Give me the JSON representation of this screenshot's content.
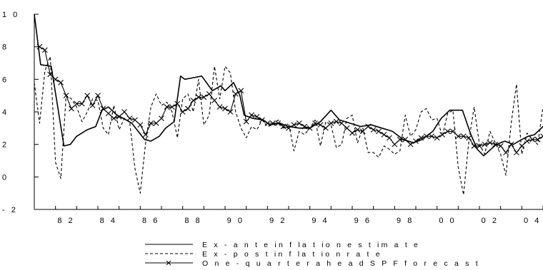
{
  "chart_data": {
    "type": "line",
    "title": "",
    "xlabel": "",
    "ylabel": "",
    "x_start": 1981.0,
    "x_end": 2005.0,
    "ylim": [
      -2,
      10
    ],
    "y_ticks": [
      "- 2",
      "0",
      "2",
      "4",
      "6",
      "8",
      "1 0"
    ],
    "x_ticks": [
      {
        "x": 1982,
        "label": "8 2"
      },
      {
        "x": 1984,
        "label": "8 4"
      },
      {
        "x": 1986,
        "label": "8 6"
      },
      {
        "x": 1988,
        "label": "8 8"
      },
      {
        "x": 1990,
        "label": "9 0"
      },
      {
        "x": 1992,
        "label": "9 2"
      },
      {
        "x": 1994,
        "label": "9 4"
      },
      {
        "x": 1996,
        "label": "9 6"
      },
      {
        "x": 1998,
        "label": "9 8"
      },
      {
        "x": 2000,
        "label": "0 0"
      },
      {
        "x": 2002,
        "label": "0 2"
      },
      {
        "x": 2004,
        "label": "0 4"
      }
    ],
    "series": [
      {
        "name": "E x - a n t e  in f la t io n  e s t im  a t e",
        "style": "solid",
        "points": [
          [
            1981.0,
            10.0
          ],
          [
            1981.3,
            6.9
          ],
          [
            1981.8,
            6.8
          ],
          [
            1982.4,
            1.9
          ],
          [
            1982.7,
            2.0
          ],
          [
            1983.0,
            2.5
          ],
          [
            1983.5,
            2.9
          ],
          [
            1983.9,
            3.1
          ],
          [
            1984.2,
            4.1
          ],
          [
            1984.5,
            4.3
          ],
          [
            1984.9,
            3.8
          ],
          [
            1985.2,
            3.6
          ],
          [
            1985.6,
            3.3
          ],
          [
            1986.2,
            2.3
          ],
          [
            1986.5,
            2.2
          ],
          [
            1986.9,
            2.5
          ],
          [
            1987.2,
            3.0
          ],
          [
            1987.6,
            3.4
          ],
          [
            1987.9,
            6.2
          ],
          [
            1988.1,
            6.0
          ],
          [
            1988.5,
            6.1
          ],
          [
            1988.9,
            6.2
          ],
          [
            1989.4,
            5.3
          ],
          [
            1989.8,
            5.6
          ],
          [
            1990.0,
            5.3
          ],
          [
            1990.4,
            5.8
          ],
          [
            1990.7,
            5.0
          ],
          [
            1990.9,
            3.8
          ],
          [
            1991.3,
            3.6
          ],
          [
            1991.8,
            3.5
          ],
          [
            1992.1,
            3.2
          ],
          [
            1992.6,
            3.3
          ],
          [
            1993.0,
            3.1
          ],
          [
            1993.5,
            3.0
          ],
          [
            1994.0,
            3.0
          ],
          [
            1994.5,
            3.4
          ],
          [
            1995.0,
            4.1
          ],
          [
            1995.4,
            3.5
          ],
          [
            1995.9,
            3.3
          ],
          [
            1996.4,
            3.1
          ],
          [
            1996.9,
            3.2
          ],
          [
            1997.4,
            3.0
          ],
          [
            1997.9,
            2.8
          ],
          [
            1998.4,
            2.3
          ],
          [
            1998.9,
            2.1
          ],
          [
            1999.3,
            2.3
          ],
          [
            1999.8,
            2.8
          ],
          [
            2000.2,
            3.6
          ],
          [
            2000.6,
            4.1
          ],
          [
            2001.2,
            4.1
          ],
          [
            2001.6,
            2.6
          ],
          [
            2001.9,
            1.7
          ],
          [
            2002.2,
            1.3
          ],
          [
            2002.8,
            2.0
          ],
          [
            2003.2,
            2.2
          ],
          [
            2003.6,
            2.0
          ],
          [
            2004.0,
            2.3
          ],
          [
            2004.3,
            2.5
          ],
          [
            2004.6,
            2.6
          ],
          [
            2005.0,
            3.1
          ]
        ]
      },
      {
        "name": "E x - p o s t in f la t io n  r a t e",
        "style": "dashed",
        "points": [
          [
            1981.0,
            5.8
          ],
          [
            1981.25,
            3.3
          ],
          [
            1981.5,
            6.5
          ],
          [
            1981.75,
            7.4
          ],
          [
            1982.0,
            0.9
          ],
          [
            1982.25,
            -0.1
          ],
          [
            1982.5,
            5.0
          ],
          [
            1982.75,
            4.8
          ],
          [
            1983.0,
            4.3
          ],
          [
            1983.25,
            3.4
          ],
          [
            1983.5,
            4.0
          ],
          [
            1983.75,
            4.8
          ],
          [
            1984.0,
            4.7
          ],
          [
            1984.25,
            3.0
          ],
          [
            1984.5,
            2.6
          ],
          [
            1984.75,
            4.4
          ],
          [
            1985.0,
            2.9
          ],
          [
            1985.25,
            3.6
          ],
          [
            1985.5,
            3.4
          ],
          [
            1985.75,
            0.5
          ],
          [
            1986.0,
            -1.0
          ],
          [
            1986.25,
            2.1
          ],
          [
            1986.5,
            4.3
          ],
          [
            1986.75,
            5.1
          ],
          [
            1987.0,
            4.4
          ],
          [
            1987.25,
            4.6
          ],
          [
            1987.5,
            4.0
          ],
          [
            1987.75,
            2.4
          ],
          [
            1988.0,
            4.8
          ],
          [
            1988.25,
            5.1
          ],
          [
            1988.5,
            4.0
          ],
          [
            1988.75,
            6.0
          ],
          [
            1989.0,
            3.2
          ],
          [
            1989.25,
            3.8
          ],
          [
            1989.5,
            6.8
          ],
          [
            1989.75,
            4.8
          ],
          [
            1990.0,
            6.8
          ],
          [
            1990.25,
            6.4
          ],
          [
            1990.5,
            4.0
          ],
          [
            1990.75,
            3.0
          ],
          [
            1991.0,
            2.4
          ],
          [
            1991.25,
            3.1
          ],
          [
            1991.5,
            2.9
          ],
          [
            1991.75,
            3.5
          ],
          [
            1992.0,
            3.1
          ],
          [
            1992.25,
            3.2
          ],
          [
            1992.5,
            3.5
          ],
          [
            1992.75,
            3.0
          ],
          [
            1993.0,
            3.3
          ],
          [
            1993.25,
            1.6
          ],
          [
            1993.5,
            2.8
          ],
          [
            1993.75,
            2.6
          ],
          [
            1994.0,
            3.0
          ],
          [
            1994.25,
            3.5
          ],
          [
            1994.5,
            1.9
          ],
          [
            1994.75,
            3.4
          ],
          [
            1995.0,
            3.2
          ],
          [
            1995.25,
            1.8
          ],
          [
            1995.5,
            2.0
          ],
          [
            1995.75,
            3.6
          ],
          [
            1996.0,
            3.8
          ],
          [
            1996.25,
            2.1
          ],
          [
            1996.5,
            3.0
          ],
          [
            1996.75,
            1.5
          ],
          [
            1997.0,
            1.5
          ],
          [
            1997.25,
            1.2
          ],
          [
            1997.5,
            1.9
          ],
          [
            1997.75,
            1.7
          ],
          [
            1998.0,
            1.4
          ],
          [
            1998.25,
            1.6
          ],
          [
            1998.5,
            3.8
          ],
          [
            1998.75,
            2.5
          ],
          [
            1999.0,
            2.9
          ],
          [
            1999.25,
            4.0
          ],
          [
            1999.5,
            4.2
          ],
          [
            1999.75,
            3.5
          ],
          [
            2000.0,
            3.6
          ],
          [
            2000.25,
            2.5
          ],
          [
            2000.5,
            3.9
          ],
          [
            2000.75,
            4.1
          ],
          [
            2001.0,
            0.6
          ],
          [
            2001.25,
            -1.1
          ],
          [
            2001.5,
            2.2
          ],
          [
            2001.75,
            4.3
          ],
          [
            2002.0,
            2.0
          ],
          [
            2002.25,
            1.4
          ],
          [
            2002.5,
            2.8
          ],
          [
            2002.75,
            2.1
          ],
          [
            2003.0,
            1.4
          ],
          [
            2003.25,
            0.1
          ],
          [
            2003.5,
            3.3
          ],
          [
            2003.75,
            5.7
          ],
          [
            2004.0,
            1.4
          ],
          [
            2004.25,
            2.7
          ],
          [
            2004.5,
            2.3
          ],
          [
            2004.75,
            2.0
          ],
          [
            2005.0,
            4.3
          ]
        ]
      },
      {
        "name": "O n e - q u a r t e r a h e a d  S P F  f o r e c a s t",
        "style": "solid-x",
        "points": [
          [
            1981.25,
            8.0
          ],
          [
            1981.5,
            7.8
          ],
          [
            1981.75,
            6.3
          ],
          [
            1982.0,
            6.0
          ],
          [
            1982.25,
            5.8
          ],
          [
            1982.5,
            5.0
          ],
          [
            1982.75,
            4.2
          ],
          [
            1983.0,
            4.5
          ],
          [
            1983.25,
            4.5
          ],
          [
            1983.5,
            5.0
          ],
          [
            1983.75,
            4.4
          ],
          [
            1984.0,
            5.0
          ],
          [
            1984.25,
            4.2
          ],
          [
            1984.5,
            3.9
          ],
          [
            1984.75,
            3.6
          ],
          [
            1985.0,
            3.7
          ],
          [
            1985.25,
            4.0
          ],
          [
            1985.5,
            3.6
          ],
          [
            1985.75,
            3.5
          ],
          [
            1986.0,
            3.2
          ],
          [
            1986.25,
            2.6
          ],
          [
            1986.5,
            3.3
          ],
          [
            1986.75,
            3.3
          ],
          [
            1987.0,
            3.6
          ],
          [
            1987.25,
            4.3
          ],
          [
            1987.5,
            4.3
          ],
          [
            1987.75,
            4.5
          ],
          [
            1988.0,
            4.0
          ],
          [
            1988.25,
            4.2
          ],
          [
            1988.5,
            4.7
          ],
          [
            1988.75,
            4.9
          ],
          [
            1989.0,
            4.9
          ],
          [
            1989.25,
            5.1
          ],
          [
            1989.5,
            4.7
          ],
          [
            1989.75,
            4.3
          ],
          [
            1990.0,
            4.2
          ],
          [
            1990.25,
            4.0
          ],
          [
            1990.5,
            5.1
          ],
          [
            1990.75,
            5.3
          ],
          [
            1991.0,
            3.4
          ],
          [
            1991.25,
            3.8
          ],
          [
            1991.5,
            3.7
          ],
          [
            1991.75,
            3.5
          ],
          [
            1992.0,
            3.3
          ],
          [
            1992.25,
            3.3
          ],
          [
            1992.5,
            3.3
          ],
          [
            1992.75,
            3.1
          ],
          [
            1993.0,
            3.0
          ],
          [
            1993.25,
            3.2
          ],
          [
            1993.5,
            3.3
          ],
          [
            1993.75,
            3.1
          ],
          [
            1994.0,
            3.0
          ],
          [
            1994.25,
            3.3
          ],
          [
            1994.5,
            3.2
          ],
          [
            1994.75,
            3.0
          ],
          [
            1995.0,
            3.3
          ],
          [
            1995.25,
            3.4
          ],
          [
            1995.5,
            3.3
          ],
          [
            1995.75,
            3.0
          ],
          [
            1996.0,
            2.7
          ],
          [
            1996.25,
            2.9
          ],
          [
            1996.5,
            2.8
          ],
          [
            1996.75,
            3.1
          ],
          [
            1997.0,
            2.9
          ],
          [
            1997.25,
            2.8
          ],
          [
            1997.5,
            2.6
          ],
          [
            1997.75,
            2.4
          ],
          [
            1998.0,
            2.0
          ],
          [
            1998.25,
            2.3
          ],
          [
            1998.5,
            2.3
          ],
          [
            1998.75,
            2.0
          ],
          [
            1999.0,
            2.2
          ],
          [
            1999.25,
            2.4
          ],
          [
            1999.5,
            2.5
          ],
          [
            1999.75,
            2.5
          ],
          [
            2000.0,
            2.4
          ],
          [
            2000.25,
            2.6
          ],
          [
            2000.5,
            2.8
          ],
          [
            2000.75,
            2.8
          ],
          [
            2001.0,
            2.5
          ],
          [
            2001.25,
            2.5
          ],
          [
            2001.5,
            2.4
          ],
          [
            2001.75,
            1.9
          ],
          [
            2002.0,
            1.9
          ],
          [
            2002.25,
            2.0
          ],
          [
            2002.5,
            2.1
          ],
          [
            2002.75,
            2.0
          ],
          [
            2003.0,
            1.9
          ],
          [
            2003.25,
            1.5
          ],
          [
            2003.5,
            2.0
          ],
          [
            2003.75,
            1.5
          ],
          [
            2004.0,
            1.9
          ],
          [
            2004.25,
            2.2
          ],
          [
            2004.5,
            2.3
          ],
          [
            2004.75,
            2.3
          ],
          [
            2005.0,
            2.5
          ]
        ]
      }
    ]
  }
}
